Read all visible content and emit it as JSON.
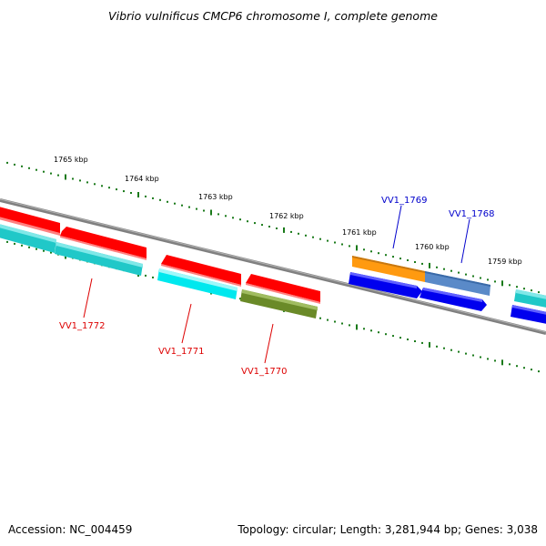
{
  "title": "Vibrio vulnificus CMCP6 chromosome I, complete genome",
  "footer": {
    "accession": "Accession: NC_004459",
    "summary": "Topology: circular; Length: 3,281,944 bp; Genes: 3,038"
  },
  "ruler_labels": [
    "1765 kbp",
    "1764 kbp",
    "1763 kbp",
    "1762 kbp",
    "1761 kbp",
    "1760 kbp",
    "1759 kbp"
  ],
  "gene_labels": [
    {
      "text": "VV1_1772",
      "color": "#dd0000"
    },
    {
      "text": "VV1_1771",
      "color": "#dd0000"
    },
    {
      "text": "VV1_1770",
      "color": "#dd0000"
    },
    {
      "text": "VV1_1769",
      "color": "#0000cc"
    },
    {
      "text": "VV1_1768",
      "color": "#0000cc"
    }
  ],
  "colors": {
    "backbone": "#808080",
    "ticks": "#1a7a1a",
    "red_feature": "#ff0000",
    "teal_feature": "#20c8c8",
    "cyan_feature": "#00e8ee",
    "olive_feature": "#6a8a28",
    "orange_feature": "#ff9a10",
    "steelblue_feature": "#5a8ac8",
    "blue_feature": "#0000ee"
  }
}
